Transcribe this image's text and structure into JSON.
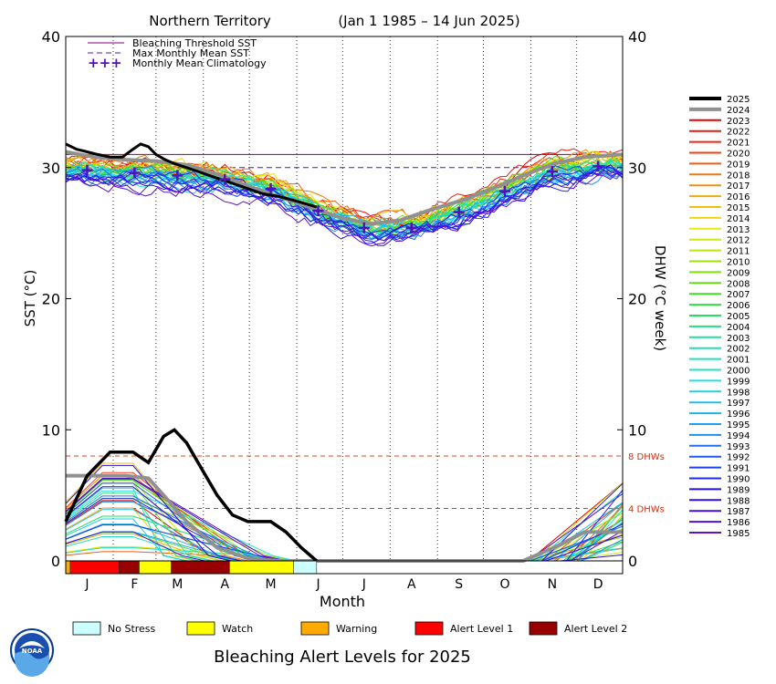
{
  "chart_data": {
    "type": "line",
    "title": "Northern Territory",
    "date_range": "(Jan 1 1985 – 14 Jun 2025)",
    "xlabel": "Month",
    "ylabel_left": "SST (°C)",
    "ylabel_right": "DHW (°C week)",
    "ylim": [
      0,
      40
    ],
    "months": [
      "J",
      "F",
      "M",
      "A",
      "M",
      "J",
      "J",
      "A",
      "S",
      "O",
      "N",
      "D"
    ],
    "y_ticks": [
      0,
      10,
      20,
      30,
      40
    ],
    "grid": "vertical dotted lines at month boundaries",
    "legend_placement": "top-left (lines) and right (years)",
    "legend": {
      "bleaching_threshold": "Bleaching Threshold SST",
      "mmm": "Max Monthly Mean SST",
      "climatology": "Monthly Mean Climatology"
    },
    "bleaching_threshold_sst": 31.0,
    "max_monthly_mean_sst": 30.0,
    "monthly_mean_climatology": [
      29.8,
      29.6,
      29.4,
      29.1,
      28.4,
      26.7,
      25.4,
      25.4,
      26.6,
      28.2,
      29.7,
      30.1
    ],
    "dhw_reference_lines": [
      {
        "value": 8,
        "label": "8 DHWs"
      },
      {
        "value": 4,
        "label": "4 DHWs"
      }
    ],
    "years": [
      "2025",
      "2024",
      "2023",
      "2022",
      "2021",
      "2020",
      "2019",
      "2018",
      "2017",
      "2016",
      "2015",
      "2014",
      "2013",
      "2012",
      "2011",
      "2010",
      "2009",
      "2008",
      "2007",
      "2006",
      "2005",
      "2004",
      "2003",
      "2002",
      "2001",
      "2000",
      "1999",
      "1998",
      "1997",
      "1996",
      "1995",
      "1994",
      "1993",
      "1992",
      "1991",
      "1990",
      "1989",
      "1988",
      "1987",
      "1986",
      "1985"
    ],
    "year_colors": [
      "#000000",
      "#909090",
      "#e00000",
      "#e81810",
      "#f02810",
      "#f04010",
      "#f05c10",
      "#f07810",
      "#f09010",
      "#f0a810",
      "#f0c010",
      "#f0d810",
      "#e8e810",
      "#d0e810",
      "#b8e810",
      "#a0e010",
      "#80e010",
      "#60e010",
      "#40e020",
      "#30e040",
      "#20e060",
      "#20e080",
      "#20e0a0",
      "#20e0b0",
      "#20e0c0",
      "#20e0d0",
      "#20e0e0",
      "#20d0e8",
      "#20c0f0",
      "#20b0f0",
      "#20a0f0",
      "#2090f0",
      "#2070f0",
      "#2058f0",
      "#2040f0",
      "#2028f0",
      "#2010e8",
      "#3010e0",
      "#4010d8",
      "#5010d0",
      "#6010c8"
    ],
    "sst_2025": [
      [
        1,
        31.8
      ],
      [
        8,
        31.4
      ],
      [
        15,
        31.2
      ],
      [
        22,
        31.0
      ],
      [
        30,
        30.8
      ],
      [
        38,
        30.8
      ],
      [
        45,
        31.4
      ],
      [
        50,
        31.8
      ],
      [
        55,
        31.6
      ],
      [
        60,
        31.0
      ],
      [
        66,
        30.6
      ],
      [
        72,
        30.3
      ],
      [
        80,
        30.0
      ],
      [
        90,
        29.6
      ],
      [
        100,
        29.2
      ],
      [
        110,
        28.8
      ],
      [
        120,
        28.4
      ],
      [
        130,
        28.0
      ],
      [
        140,
        27.8
      ],
      [
        150,
        27.5
      ],
      [
        156,
        27.3
      ],
      [
        165,
        27.0
      ]
    ],
    "sst_2024": [
      [
        1,
        31.2
      ],
      [
        20,
        30.8
      ],
      [
        40,
        30.6
      ],
      [
        60,
        30.5
      ],
      [
        80,
        30.2
      ],
      [
        100,
        29.5
      ],
      [
        120,
        28.6
      ],
      [
        140,
        27.8
      ],
      [
        160,
        27.0
      ],
      [
        180,
        26.2
      ],
      [
        200,
        25.7
      ],
      [
        220,
        26.0
      ],
      [
        240,
        26.8
      ],
      [
        260,
        27.5
      ],
      [
        280,
        28.4
      ],
      [
        300,
        29.4
      ],
      [
        320,
        30.3
      ],
      [
        340,
        30.8
      ],
      [
        365,
        31.0
      ]
    ],
    "dhw_2025": [
      [
        1,
        3.0
      ],
      [
        15,
        6.5
      ],
      [
        30,
        8.3
      ],
      [
        45,
        8.3
      ],
      [
        55,
        7.5
      ],
      [
        65,
        9.5
      ],
      [
        72,
        10.0
      ],
      [
        80,
        9.0
      ],
      [
        90,
        7.0
      ],
      [
        100,
        5.0
      ],
      [
        110,
        3.5
      ],
      [
        120,
        3.0
      ],
      [
        135,
        3.0
      ],
      [
        145,
        2.2
      ],
      [
        155,
        1.0
      ],
      [
        165,
        0.0
      ]
    ],
    "dhw_2024": [
      [
        1,
        6.5
      ],
      [
        20,
        6.5
      ],
      [
        40,
        6.5
      ],
      [
        55,
        6.3
      ],
      [
        65,
        5.0
      ],
      [
        80,
        3.0
      ],
      [
        100,
        1.0
      ],
      [
        120,
        0.2
      ],
      [
        140,
        0.0
      ],
      [
        300,
        0.0
      ],
      [
        320,
        1.0
      ],
      [
        340,
        2.2
      ],
      [
        365,
        2.2
      ]
    ],
    "alert_levels_2025": [
      {
        "level": "Warning",
        "from": 1,
        "to": 4
      },
      {
        "level": "Alert Level 1",
        "from": 4,
        "to": 36
      },
      {
        "level": "Alert Level 2",
        "from": 36,
        "to": 49
      },
      {
        "level": "Watch",
        "from": 49,
        "to": 70
      },
      {
        "level": "Alert Level 2",
        "from": 70,
        "to": 108
      },
      {
        "level": "Watch",
        "from": 108,
        "to": 150
      },
      {
        "level": "No Stress",
        "from": 150,
        "to": 165
      }
    ],
    "alert_legend": [
      {
        "label": "No Stress",
        "color": "#ccffff"
      },
      {
        "label": "Watch",
        "color": "#ffff00"
      },
      {
        "label": "Warning",
        "color": "#ffaa00"
      },
      {
        "label": "Alert Level 1",
        "color": "#ff0000"
      },
      {
        "label": "Alert Level 2",
        "color": "#990000"
      }
    ],
    "alert_title": "Bleaching Alert Levels for 2025"
  },
  "logo": {
    "text": "NOAA"
  }
}
